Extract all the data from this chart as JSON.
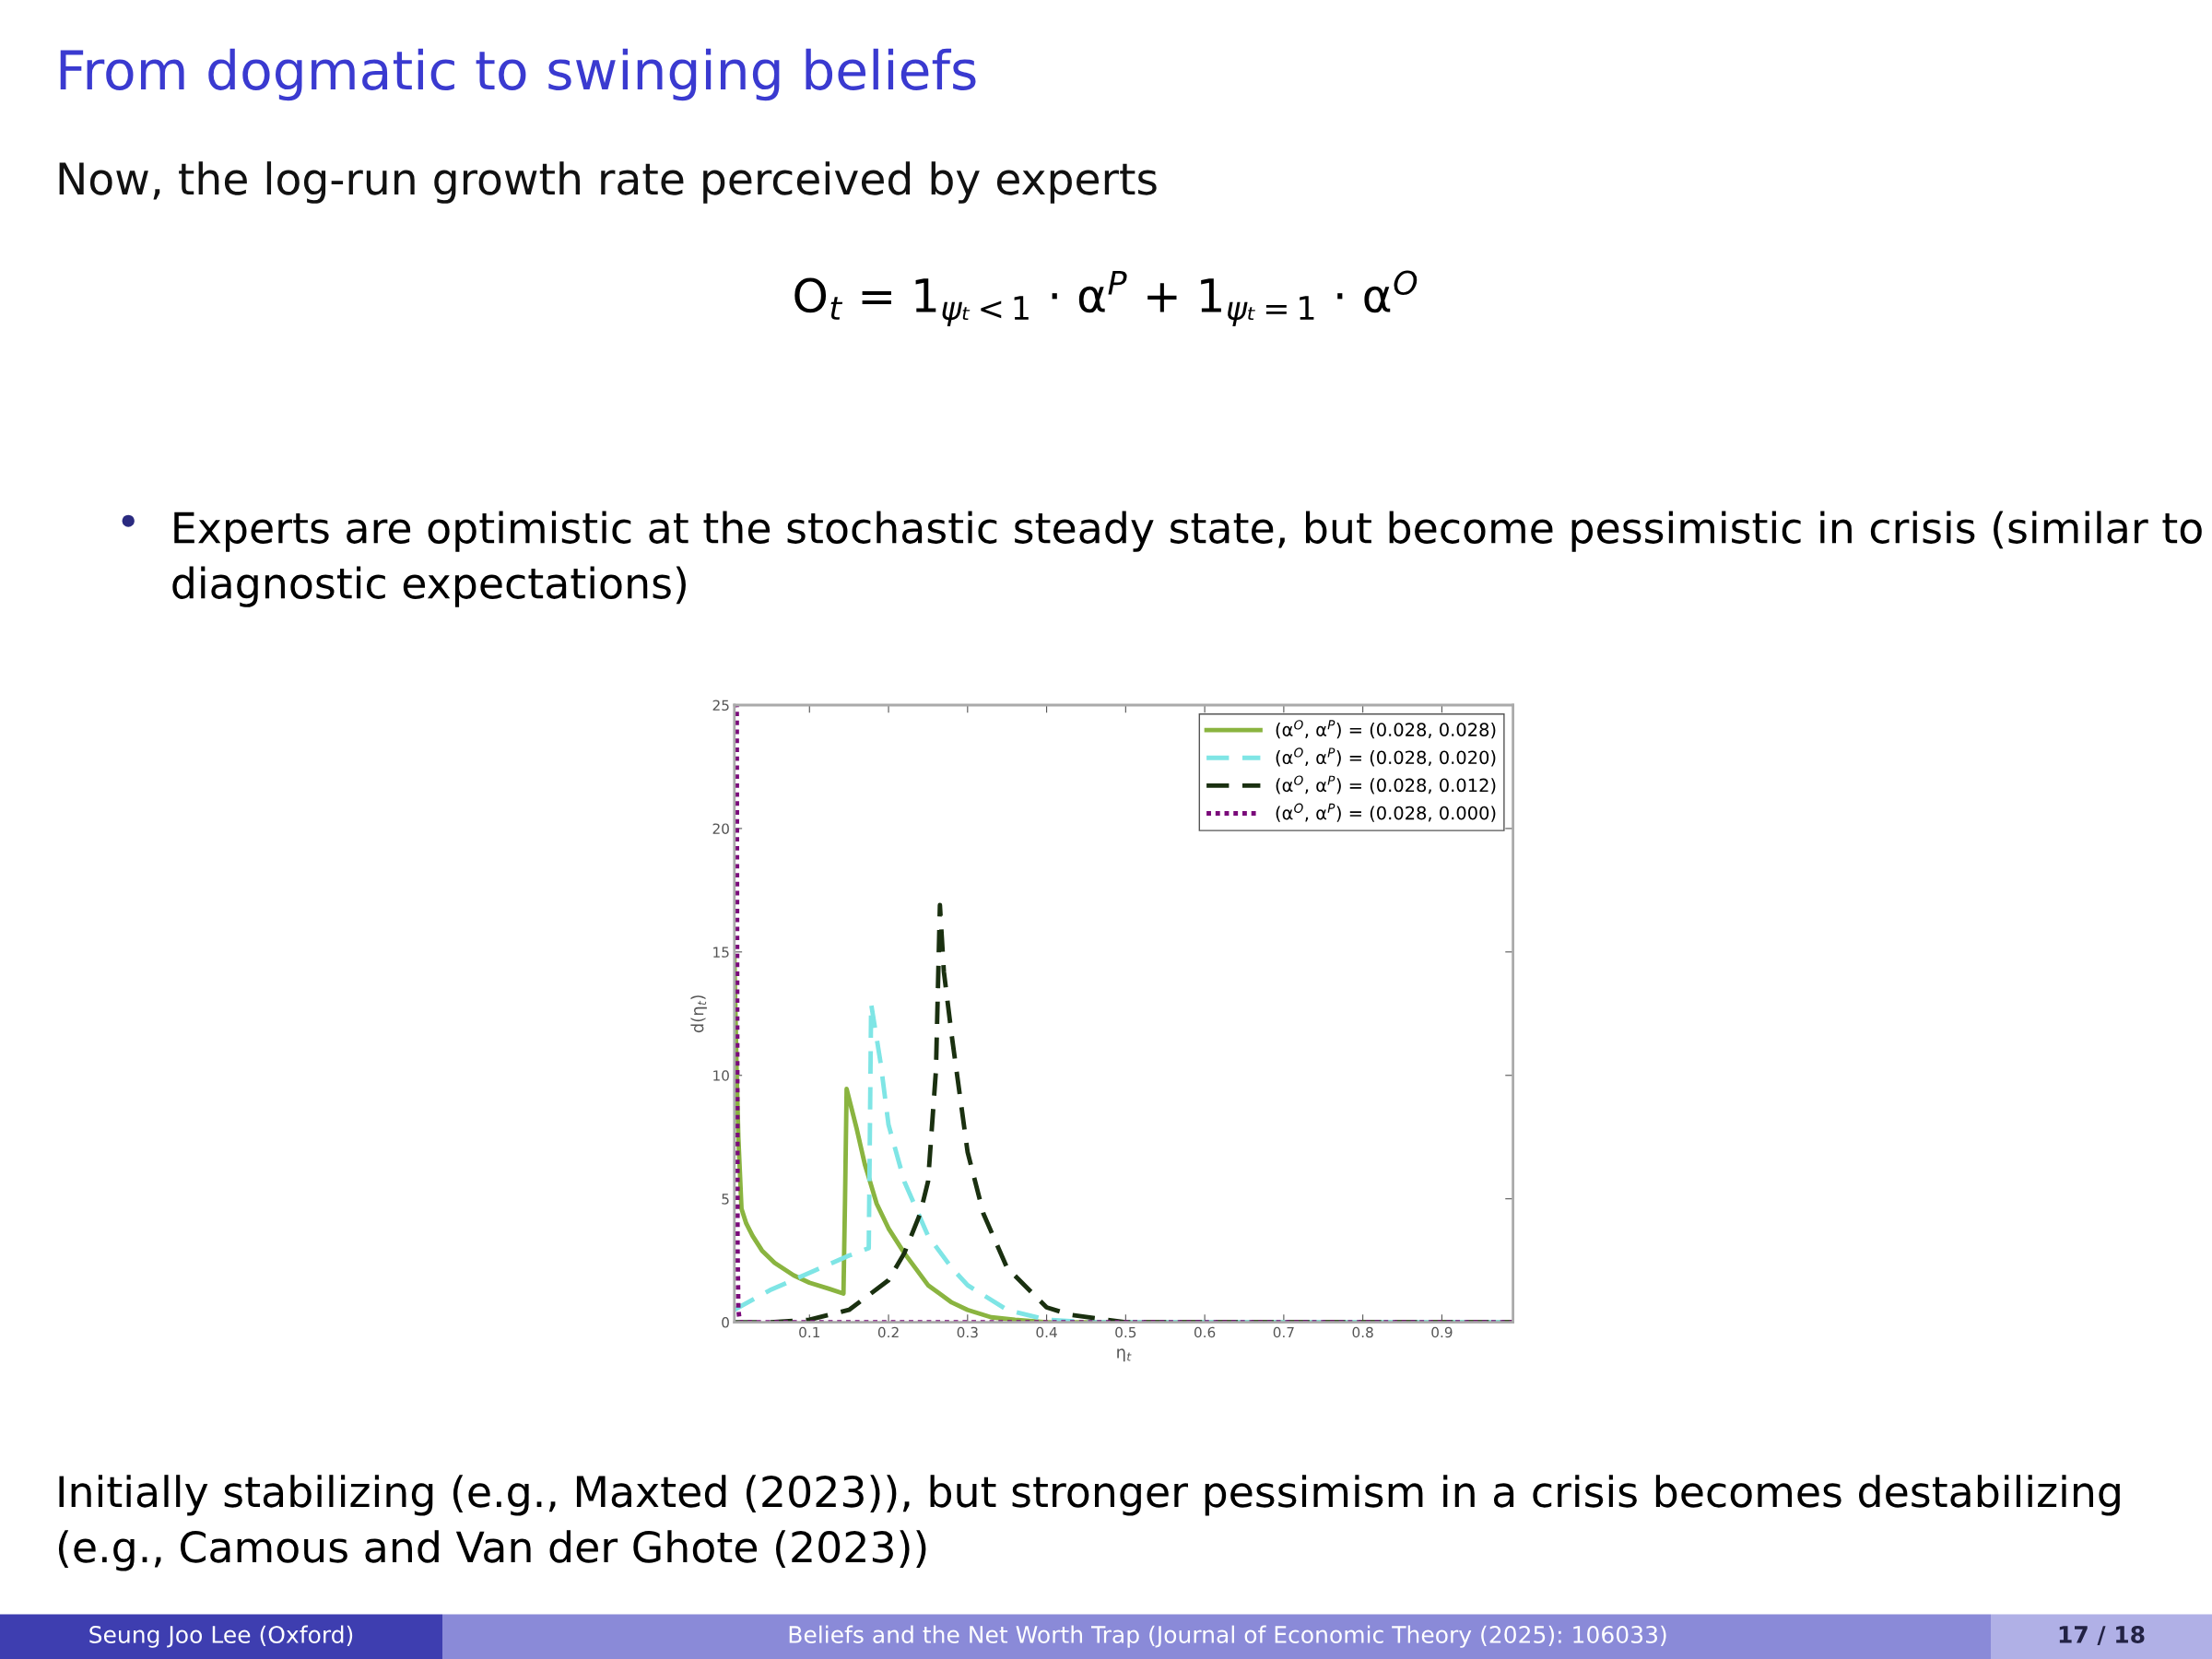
{
  "chart_data": {
    "type": "line",
    "title": "From dogmatic to swinging beliefs",
    "subtitle": "Now, the log-run growth rate perceived by experts",
    "xlabel": "η$_{t}$",
    "ylabel": "d(η$_{t}$)",
    "annotations": [
      "O$_{t}$ = 1$_{ψₜ<1}$ · α$^{P}$ + 1$_{ψₜ=1}$ · α$^{O}$",
      "Experts are optimistic at the stochastic steady state, but become pessimistic in crisis (similar to diagnostic expectations)",
      "Initially stabilizing (e.g., Maxted (2023)), but stronger pessimism in a crisis becomes destabilizing (e.g., Camous and Van der Ghote (2023))",
      "Seung Joo Lee (Oxford)",
      "Beliefs and the Net Worth Trap (Journal of Economic Theory (2025): 106033)",
      "17 / 18"
    ],
    "series": [
      {
        "name": "(α$^{O}$, α$^{P}$) = (0.028, 0.028)",
        "color": "#8ab440",
        "line_style": "solid",
        "x": [
          0.005,
          0.008,
          0.01,
          0.014,
          0.02,
          0.028,
          0.04,
          0.056,
          0.08,
          0.1,
          0.125,
          0.143,
          0.145,
          0.147,
          0.16,
          0.17,
          0.185,
          0.2,
          0.22,
          0.25,
          0.28,
          0.3,
          0.33,
          0.36,
          0.4,
          0.5,
          0.7,
          0.99
        ],
        "values": [
          14.7,
          10,
          7.5,
          4.6,
          4.0,
          3.5,
          2.9,
          2.4,
          1.9,
          1.6,
          1.35,
          1.16,
          5,
          9.45,
          7.8,
          6.4,
          4.8,
          3.8,
          2.8,
          1.5,
          0.8,
          0.5,
          0.2,
          0.1,
          0,
          0,
          0,
          0
        ]
      },
      {
        "name": "(α$^{O}$, α$^{P}$) = (0.028, 0.020)",
        "color": "#7fe5e5",
        "line_style": "dashed",
        "x": [
          0.005,
          0.05,
          0.1,
          0.15,
          0.175,
          0.178,
          0.19,
          0.2,
          0.22,
          0.25,
          0.28,
          0.3,
          0.35,
          0.4,
          0.45,
          0.6,
          0.8,
          0.99
        ],
        "values": [
          0.5,
          1.3,
          2.0,
          2.7,
          3.0,
          12.9,
          10.5,
          8.0,
          5.7,
          3.5,
          2.2,
          1.5,
          0.5,
          0.1,
          0,
          0,
          0,
          0
        ]
      },
      {
        "name": "(α$^{O}$, α$^{P}$) = (0.028, 0.012)",
        "color": "#1a3010",
        "line_style": "dashed",
        "x": [
          0.005,
          0.05,
          0.1,
          0.15,
          0.2,
          0.22,
          0.24,
          0.25,
          0.26,
          0.265,
          0.27,
          0.28,
          0.3,
          0.32,
          0.35,
          0.4,
          0.43,
          0.5,
          0.7,
          0.99
        ],
        "values": [
          0,
          0,
          0.1,
          0.5,
          1.7,
          2.8,
          4.4,
          5.7,
          10.2,
          16.9,
          14.2,
          11.6,
          6.9,
          4.4,
          2.2,
          0.6,
          0.3,
          0,
          0,
          0
        ]
      },
      {
        "name": "(α$^{O}$, α$^{P}$) = (0.028, 0.000)",
        "color": "#7a0a7a",
        "line_style": "dotted",
        "x": [
          0.005,
          0.008,
          0.009,
          0.01,
          0.012,
          0.5,
          0.99
        ],
        "values": [
          25,
          25,
          3,
          0.5,
          0,
          0,
          0
        ]
      }
    ],
    "xlim": [
      0.005,
      0.99
    ],
    "ylim": [
      0,
      25
    ],
    "xticks": [
      0.1,
      0.2,
      0.3,
      0.4,
      0.5,
      0.6,
      0.7,
      0.8,
      0.9
    ],
    "yticks": [
      0,
      5,
      10,
      15,
      20,
      25
    ],
    "grid": false,
    "legend": "top right"
  }
}
